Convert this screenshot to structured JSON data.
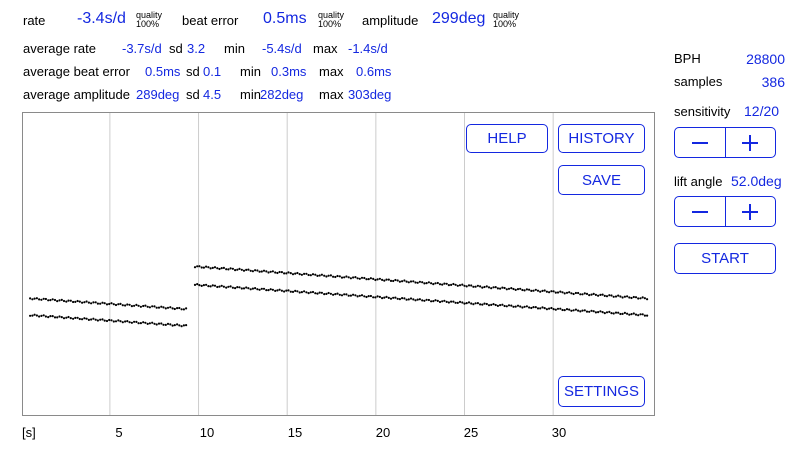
{
  "top": {
    "rate_label": "rate",
    "rate_value": "-3.4s/d",
    "beat_error_label": "beat error",
    "beat_error_value": "0.5ms",
    "amplitude_label": "amplitude",
    "amplitude_value": "299deg",
    "quality_label": "quality",
    "quality_value": "100%"
  },
  "averages": {
    "rate": {
      "label": "average rate",
      "value": "-3.7s/d",
      "sd_label": "sd",
      "sd": "3.2",
      "min_label": "min",
      "min": "-5.4s/d",
      "max_label": "max",
      "max": "-1.4s/d"
    },
    "beat_error": {
      "label": "average beat error",
      "value": "0.5ms",
      "sd_label": "sd",
      "sd": "0.1",
      "min_label": "min",
      "min": "0.3ms",
      "max_label": "max",
      "max": "0.6ms"
    },
    "amplitude": {
      "label": "average amplitude",
      "value": "289deg",
      "sd_label": "sd",
      "sd": "4.5",
      "min_label": "min",
      "min": "282deg",
      "max_label": "max",
      "max": "303deg"
    }
  },
  "panel": {
    "bph_label": "BPH",
    "bph_value": "28800",
    "samples_label": "samples",
    "samples_value": "386",
    "sensitivity_label": "sensitivity",
    "sensitivity_value": "12/20",
    "lift_angle_label": "lift angle",
    "lift_angle_value": "52.0deg",
    "minus": "−",
    "plus": "+",
    "start_label": "START"
  },
  "buttons": {
    "help": "HELP",
    "history": "HISTORY",
    "save": "SAVE",
    "settings": "SETTINGS"
  },
  "colors": {
    "accent": "#1428e0",
    "grid": "#cccccc",
    "trace": "#000000"
  },
  "chart_data": {
    "type": "scatter",
    "xlabel": "[s]",
    "x_ticks": [
      "5",
      "10",
      "15",
      "20",
      "25",
      "30"
    ],
    "xlim": [
      0.1,
      35.8
    ],
    "series": [
      {
        "segment": 1,
        "x_range": [
          0.5,
          9.3
        ],
        "y_start": 0.61,
        "y_end": 0.645
      },
      {
        "segment": 1,
        "x_range": [
          0.5,
          9.3
        ],
        "y_start": 0.665,
        "y_end": 0.7
      },
      {
        "segment": 2,
        "x_range": [
          9.8,
          35.3
        ],
        "y_start": 0.505,
        "y_end": 0.61
      },
      {
        "segment": 2,
        "x_range": [
          9.8,
          35.3
        ],
        "y_start": 0.565,
        "y_end": 0.665
      }
    ]
  }
}
